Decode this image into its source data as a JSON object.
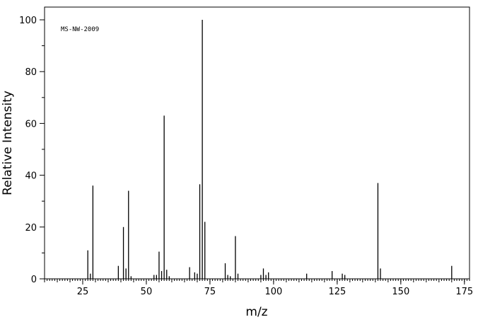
{
  "chart_data": {
    "type": "bar",
    "annotation": "MS-NW-2009",
    "xlabel": "m/z",
    "ylabel": "Relative Intensity",
    "xlim": [
      10,
      177
    ],
    "ylim": [
      0,
      100
    ],
    "xticks": [
      "25",
      "50",
      "75",
      "100",
      "125",
      "150",
      "175"
    ],
    "yticks": [
      "0",
      "20",
      "40",
      "60",
      "80",
      "100"
    ],
    "grid": false,
    "x": [
      27,
      28,
      29,
      39,
      41,
      42,
      43,
      44,
      53,
      54,
      55,
      56,
      57,
      58,
      59,
      67,
      69,
      70,
      71,
      72,
      73,
      81,
      82,
      83,
      85,
      86,
      95,
      96,
      97,
      98,
      113,
      123,
      127,
      128,
      141,
      142,
      170
    ],
    "values": [
      11,
      2,
      36,
      5,
      20,
      4,
      34,
      1,
      1.5,
      1.5,
      10.5,
      3,
      63,
      3.5,
      1,
      4.5,
      2.5,
      2,
      36.5,
      100,
      22,
      6,
      1.5,
      1,
      16.5,
      2,
      1.5,
      4,
      1.5,
      2.5,
      2,
      3,
      2,
      1.5,
      37,
      4,
      5
    ]
  }
}
